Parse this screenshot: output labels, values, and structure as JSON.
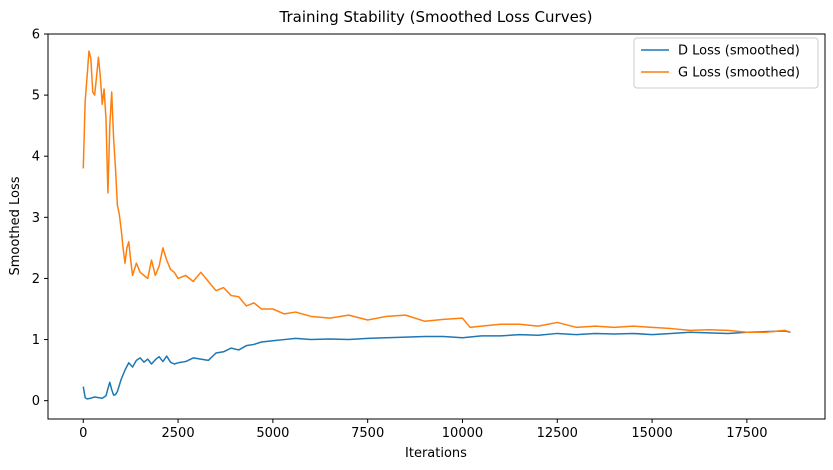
{
  "chart_data": {
    "type": "line",
    "title": "Training Stability (Smoothed Loss Curves)",
    "xlabel": "Iterations",
    "ylabel": "Smoothed Loss",
    "xlim": [
      -930,
      19560
    ],
    "ylim": [
      -0.3,
      6.0
    ],
    "xticks": [
      0,
      2500,
      5000,
      7500,
      10000,
      12500,
      15000,
      17500
    ],
    "yticks": [
      0,
      1,
      2,
      3,
      4,
      5,
      6
    ],
    "grid": false,
    "legend_position": "upper right",
    "series": [
      {
        "name": "D Loss (smoothed)",
        "color": "#1f77b4",
        "x": [
          0,
          50,
          100,
          200,
          300,
          400,
          500,
          600,
          650,
          700,
          750,
          800,
          850,
          900,
          1000,
          1100,
          1200,
          1300,
          1400,
          1500,
          1600,
          1700,
          1800,
          1900,
          2000,
          2100,
          2200,
          2300,
          2400,
          2500,
          2700,
          2900,
          3100,
          3300,
          3500,
          3700,
          3900,
          4100,
          4300,
          4500,
          4700,
          5000,
          5300,
          5600,
          6000,
          6500,
          7000,
          7500,
          8000,
          8500,
          9000,
          9500,
          10000,
          10500,
          11000,
          11500,
          12000,
          12500,
          13000,
          13500,
          14000,
          14500,
          15000,
          15500,
          16000,
          16500,
          17000,
          17500,
          18000,
          18500,
          18650
        ],
        "values": [
          0.23,
          0.05,
          0.03,
          0.04,
          0.06,
          0.05,
          0.04,
          0.08,
          0.2,
          0.3,
          0.18,
          0.09,
          0.1,
          0.15,
          0.35,
          0.5,
          0.62,
          0.55,
          0.66,
          0.7,
          0.63,
          0.68,
          0.6,
          0.67,
          0.72,
          0.64,
          0.73,
          0.63,
          0.6,
          0.62,
          0.64,
          0.7,
          0.68,
          0.66,
          0.78,
          0.8,
          0.86,
          0.83,
          0.9,
          0.92,
          0.96,
          0.98,
          1.0,
          1.02,
          1.0,
          1.01,
          1.0,
          1.02,
          1.03,
          1.04,
          1.05,
          1.05,
          1.03,
          1.06,
          1.06,
          1.08,
          1.07,
          1.1,
          1.08,
          1.1,
          1.09,
          1.1,
          1.08,
          1.1,
          1.12,
          1.11,
          1.1,
          1.12,
          1.13,
          1.14,
          1.12
        ]
      },
      {
        "name": "G Loss (smoothed)",
        "color": "#ff7f0e",
        "x": [
          0,
          50,
          100,
          150,
          200,
          250,
          300,
          350,
          400,
          450,
          500,
          550,
          600,
          650,
          700,
          750,
          800,
          850,
          900,
          950,
          1000,
          1050,
          1100,
          1150,
          1200,
          1250,
          1300,
          1400,
          1500,
          1600,
          1700,
          1800,
          1900,
          2000,
          2100,
          2200,
          2300,
          2400,
          2500,
          2700,
          2900,
          3100,
          3300,
          3500,
          3700,
          3900,
          4100,
          4300,
          4500,
          4700,
          5000,
          5300,
          5600,
          6000,
          6500,
          7000,
          7500,
          8000,
          8500,
          9000,
          9500,
          10000,
          10200,
          10500,
          11000,
          11500,
          12000,
          12500,
          13000,
          13500,
          14000,
          14500,
          15000,
          15500,
          16000,
          16500,
          17000,
          17500,
          18000,
          18500,
          18650
        ],
        "values": [
          3.8,
          4.9,
          5.3,
          5.72,
          5.6,
          5.05,
          5.0,
          5.3,
          5.62,
          5.3,
          4.85,
          5.1,
          4.6,
          3.4,
          4.5,
          5.05,
          4.3,
          3.8,
          3.2,
          3.05,
          2.8,
          2.5,
          2.25,
          2.5,
          2.6,
          2.3,
          2.05,
          2.25,
          2.1,
          2.05,
          2.0,
          2.3,
          2.05,
          2.2,
          2.5,
          2.3,
          2.15,
          2.1,
          2.0,
          2.05,
          1.95,
          2.1,
          1.95,
          1.8,
          1.85,
          1.72,
          1.7,
          1.55,
          1.6,
          1.5,
          1.5,
          1.42,
          1.45,
          1.38,
          1.35,
          1.4,
          1.32,
          1.38,
          1.4,
          1.3,
          1.33,
          1.35,
          1.2,
          1.22,
          1.25,
          1.25,
          1.22,
          1.28,
          1.2,
          1.22,
          1.2,
          1.22,
          1.2,
          1.18,
          1.15,
          1.16,
          1.15,
          1.12,
          1.12,
          1.15,
          1.12
        ]
      }
    ]
  }
}
